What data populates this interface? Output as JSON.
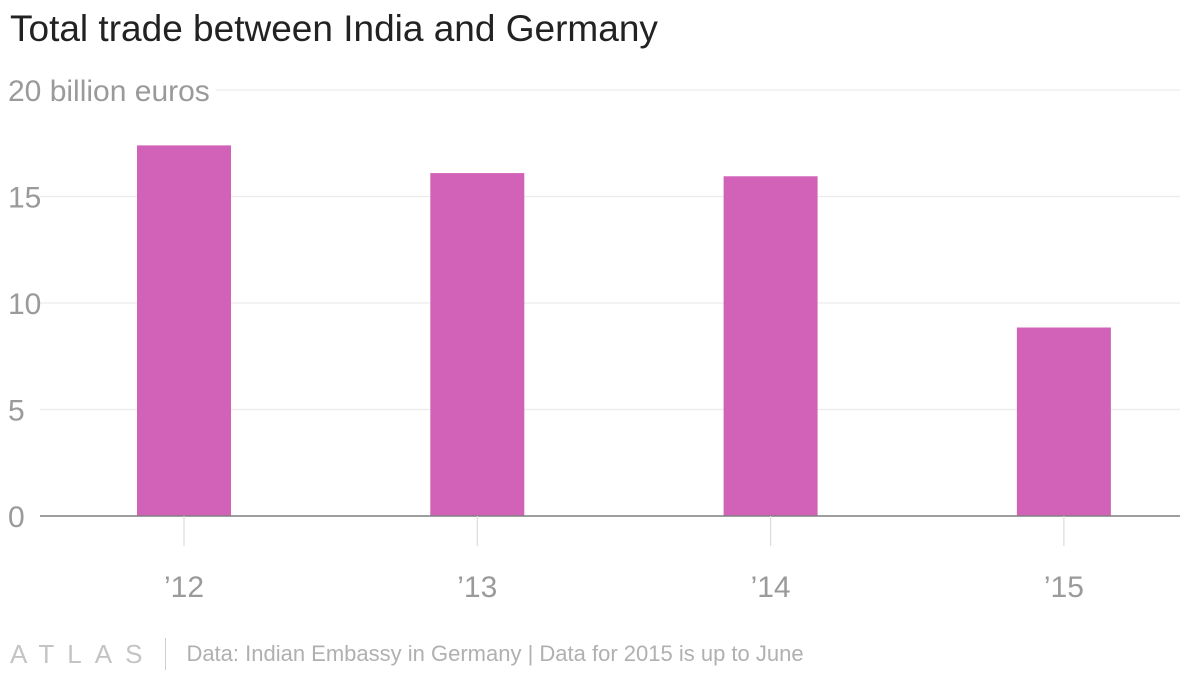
{
  "chart_data": {
    "type": "bar",
    "title": "Total trade between India and Germany",
    "ylabel": "billion euros",
    "unit_label": "20 billion euros",
    "categories": [
      "’12",
      "’13",
      "’14",
      "’15"
    ],
    "values": [
      17.4,
      16.1,
      15.95,
      8.85
    ],
    "ylim": [
      0,
      20
    ],
    "yticks": [
      0,
      5,
      10,
      15
    ],
    "grid": true,
    "bar_color": "#d262b7"
  },
  "footer": {
    "brand": "ATLAS",
    "source": "Data: Indian Embassy in Germany | Data for 2015 is up to June"
  }
}
